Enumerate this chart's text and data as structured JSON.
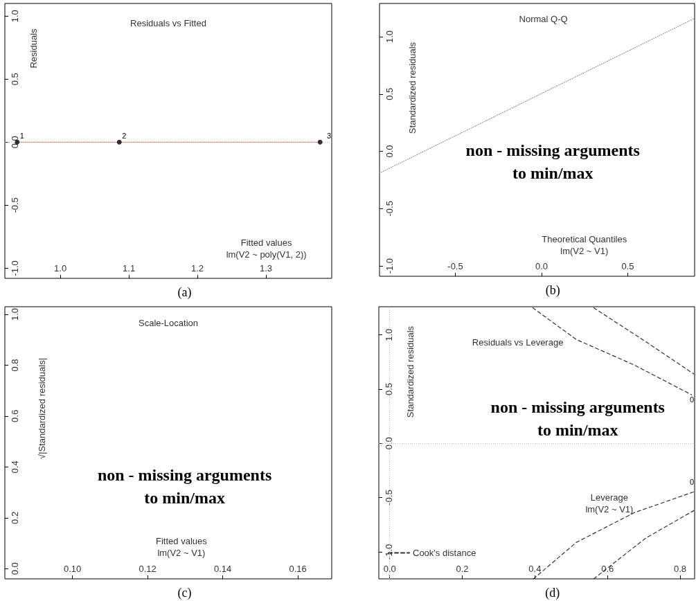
{
  "chart_data": [
    {
      "type": "scatter",
      "title": "Residuals vs Fitted",
      "xlabel": "Fitted values\nlm(V2 ~ poly(V1, 2))",
      "ylabel": "Residuals",
      "xlim": [
        0.919,
        1.396
      ],
      "ylim": [
        -1.08,
        1.1
      ],
      "xticks": [
        {
          "value": 1,
          "label": "1.0"
        },
        1.1,
        1.2,
        1.3
      ],
      "yticks": [
        {
          "value": -1,
          "label": "-1.0"
        },
        -0.5,
        {
          "value": 0,
          "label": "0.0"
        },
        0.5,
        {
          "value": 1,
          "label": "1.0"
        }
      ],
      "grid": false,
      "marker": "circle",
      "series": [
        {
          "color": "#000000",
          "x": [
            0.937,
            1.086,
            1.379
          ],
          "values": [
            0,
            0,
            0
          ]
        },
        {
          "type": "line",
          "marker": "none",
          "color": "#ff0000",
          "line_style": "dotted",
          "x": [
            0.937,
            1.086,
            1.379
          ],
          "values": [
            0,
            0,
            0
          ]
        }
      ],
      "ref_lines": [
        {
          "axis": "y",
          "value": 0,
          "color": "#bbbbbb",
          "line_style": "dotted"
        }
      ],
      "annotations": [
        {
          "text": "1",
          "x": 0.937,
          "y": 0
        },
        {
          "text": "2",
          "x": 1.086,
          "y": 0
        },
        {
          "text": "3",
          "x": 1.379,
          "y": 0
        },
        "(a)"
      ]
    },
    {
      "type": "line",
      "title": "Normal Q-Q",
      "xlabel": "Theoretical Quantiles\nlm(V2 ~ V1)",
      "ylabel": "Standardized residuals",
      "xlim": [
        -0.94,
        0.888
      ],
      "ylim": [
        -1.09,
        1.29
      ],
      "xticks": [
        -0.5,
        {
          "value": 0,
          "label": "0.0"
        },
        0.5
      ],
      "yticks": [
        {
          "value": -1,
          "label": "-1.0"
        },
        -0.5,
        {
          "value": 0,
          "label": "0.0"
        },
        0.5,
        {
          "value": 1,
          "label": "1.0"
        }
      ],
      "grid": false,
      "series": [
        {
          "color": "#999999",
          "line_style": "dotted",
          "x": [
            -0.94,
            0.888
          ],
          "values": [
            -0.19,
            1.16
          ]
        }
      ],
      "annotations": [
        "non - missing arguments\nto min/max",
        "(b)"
      ]
    },
    {
      "type": "scatter",
      "title": "Scale-Location",
      "xlabel": "Fitted values\nlm(V2 ~ V1)",
      "ylabel": "√|Standardized residuals|",
      "xlim": [
        0.082,
        0.169
      ],
      "ylim": [
        -0.04,
        1.03
      ],
      "xticks": [
        {
          "value": 0.1,
          "label": "0.10"
        },
        {
          "value": 0.12,
          "label": "0.12"
        },
        {
          "value": 0.14,
          "label": "0.14"
        },
        {
          "value": 0.16,
          "label": "0.16"
        }
      ],
      "yticks": [
        {
          "value": 0,
          "label": "0.0"
        },
        0.2,
        0.4,
        0.6,
        0.8,
        {
          "value": 1,
          "label": "1.0"
        }
      ],
      "grid": false,
      "annotations": [
        "non - missing arguments\nto min/max",
        "(c)"
      ]
    },
    {
      "type": "line",
      "title": "Residuals vs Leverage",
      "xlabel": "Leverage\nlm(V2 ~ V1)",
      "ylabel": "Standardized residuals",
      "xlim": [
        -0.03,
        0.84
      ],
      "ylim": [
        -1.25,
        1.26
      ],
      "xticks": [
        {
          "value": 0,
          "label": "0.0"
        },
        0.2,
        0.4,
        0.6,
        0.8
      ],
      "yticks": [
        {
          "value": -1,
          "label": "-1.0"
        },
        -0.5,
        {
          "value": 0,
          "label": "0.0"
        },
        0.5,
        {
          "value": 1,
          "label": "1.0"
        }
      ],
      "grid": false,
      "legend": "bottom left",
      "line_style": "dashed",
      "series": [
        {
          "name": "Cook's distance",
          "color": "#333333",
          "x": [
            0.394,
            0.514,
            0.674,
            0.832
          ],
          "values": [
            1.25,
            0.958,
            0.722,
            0.447
          ]
        },
        {
          "color": "#333333",
          "x": [
            0.562,
            0.705,
            0.838
          ],
          "values": [
            1.25,
            0.939,
            0.639
          ]
        },
        {
          "color": "#333333",
          "x": [
            0.396,
            0.514,
            0.674,
            0.838
          ],
          "values": [
            -1.25,
            -0.914,
            -0.639,
            -0.447
          ]
        },
        {
          "color": "#333333",
          "x": [
            0.562,
            0.705,
            0.838
          ],
          "values": [
            -1.25,
            -0.875,
            -0.62
          ]
        }
      ],
      "ref_lines": [
        {
          "axis": "x",
          "value": 0,
          "color": "#bbbbbb",
          "line_style": "dotted"
        },
        {
          "axis": "y",
          "value": 0,
          "color": "#bbbbbb",
          "line_style": "dotted"
        }
      ],
      "annotations": [
        "0",
        "0",
        "non - missing arguments\nto min/max",
        "(d)"
      ]
    }
  ]
}
